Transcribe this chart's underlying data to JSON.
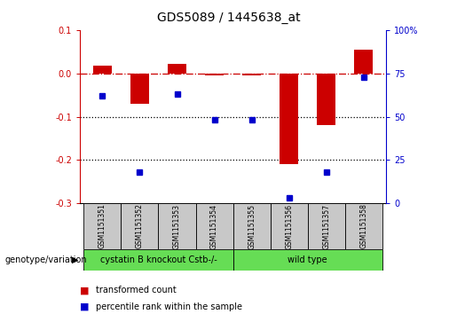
{
  "title": "GDS5089 / 1445638_at",
  "samples": [
    "GSM1151351",
    "GSM1151352",
    "GSM1151353",
    "GSM1151354",
    "GSM1151355",
    "GSM1151356",
    "GSM1151357",
    "GSM1151358"
  ],
  "red_values": [
    0.018,
    -0.07,
    0.022,
    -0.005,
    -0.005,
    -0.21,
    -0.12,
    0.055
  ],
  "blue_percentiles": [
    62,
    18,
    63,
    48,
    48,
    3,
    18,
    73
  ],
  "ylim_left": [
    -0.3,
    0.1
  ],
  "ylim_right": [
    0,
    100
  ],
  "right_ticks": [
    0,
    25,
    50,
    75,
    100
  ],
  "right_tick_labels": [
    "0",
    "25",
    "50",
    "75",
    "100%"
  ],
  "left_ticks": [
    -0.3,
    -0.2,
    -0.1,
    0.0,
    0.1
  ],
  "group1_label": "cystatin B knockout Cstb-/-",
  "group2_label": "wild type",
  "group_label_prefix": "genotype/variation",
  "legend_red": "transformed count",
  "legend_blue": "percentile rank within the sample",
  "red_color": "#cc0000",
  "blue_color": "#0000cc",
  "bar_width": 0.5,
  "dashed_line_color": "#cc0000",
  "dotted_line_color": "#000000",
  "grid_lines": [
    -0.1,
    -0.2
  ],
  "plot_bg": "#ffffff",
  "box_bg": "#c8c8c8",
  "group_bg": "#66dd55",
  "title_fontsize": 10,
  "tick_fontsize": 7,
  "sample_fontsize": 5.5,
  "group_fontsize": 7,
  "legend_fontsize": 7,
  "genotype_fontsize": 7
}
